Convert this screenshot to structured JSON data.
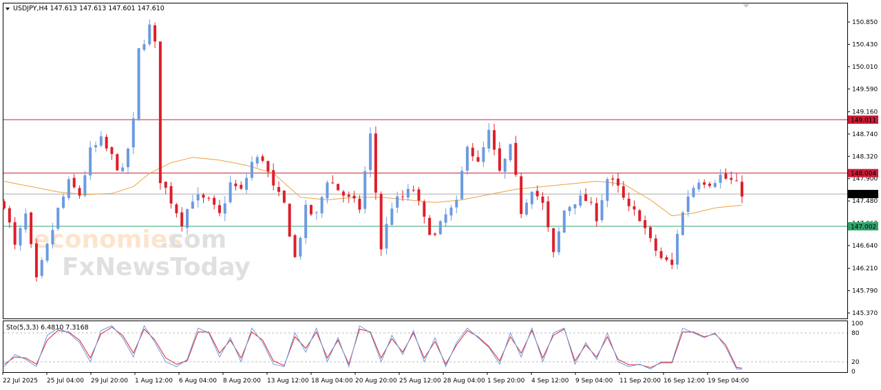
{
  "header": {
    "symbol_line": "USDJPY,H4  147.613 147.613 147.601 147.610",
    "indicator_line": "Sto(5,3,3) 6.4810 7.3168"
  },
  "watermark": {
    "part1": "economies",
    "part2": ".com",
    "line2": "FxNewsToday"
  },
  "colors": {
    "bull": "#6b9be0",
    "bear": "#dd1f2a",
    "ma": "#e9a33c",
    "resistance": "#c91d36",
    "support": "#2ea56b",
    "current": "#aaaaaa",
    "stoch_main": "#6b9be0",
    "stoch_signal": "#dd1f2a",
    "label_red": "#c91d36",
    "label_green": "#2ea56b",
    "label_black": "#000000"
  },
  "chart_data": {
    "type": "candlestick",
    "symbol": "USDJPY",
    "timeframe": "H4",
    "y_ticks": [
      "150.850",
      "150.430",
      "150.010",
      "149.590",
      "149.160",
      "148.740",
      "148.320",
      "147.900",
      "147.480",
      "147.060",
      "146.640",
      "146.210",
      "145.790",
      "145.370"
    ],
    "ylim": [
      145.37,
      150.85
    ],
    "x_labels": [
      "22 Jul 2025",
      "25 Jul 04:00",
      "29 Jul 20:00",
      "1 Aug 12:00",
      "6 Aug 04:00",
      "8 Aug 20:00",
      "13 Aug 12:00",
      "18 Aug 04:00",
      "20 Aug 20:00",
      "25 Aug 12:00",
      "28 Aug 04:00",
      "1 Sep 20:00",
      "4 Sep 12:00",
      "9 Sep 04:00",
      "11 Sep 20:00",
      "16 Sep 12:00",
      "19 Sep 04:00"
    ],
    "horizontal_levels": [
      {
        "label": "149.011",
        "value": 149.011,
        "kind": "resistance"
      },
      {
        "label": "148.004",
        "value": 148.004,
        "kind": "resistance"
      },
      {
        "label": "147.610",
        "value": 147.61,
        "kind": "current"
      },
      {
        "label": "147.002",
        "value": 147.002,
        "kind": "support"
      }
    ],
    "close_path": [
      [
        0,
        147.45
      ],
      [
        2,
        146.6
      ],
      [
        4,
        147.2
      ],
      [
        6,
        145.95
      ],
      [
        8,
        146.6
      ],
      [
        10,
        147.3
      ],
      [
        12,
        147.8
      ],
      [
        14,
        147.6
      ],
      [
        16,
        148.4
      ],
      [
        18,
        148.6
      ],
      [
        20,
        148.3
      ],
      [
        22,
        148.0
      ],
      [
        24,
        148.95
      ],
      [
        25,
        150.3
      ],
      [
        27,
        150.75
      ],
      [
        28,
        150.4
      ],
      [
        29,
        147.9
      ],
      [
        31,
        147.5
      ],
      [
        33,
        147.1
      ],
      [
        35,
        147.55
      ],
      [
        38,
        147.45
      ],
      [
        40,
        147.2
      ],
      [
        42,
        147.8
      ],
      [
        44,
        147.65
      ],
      [
        46,
        148.2
      ],
      [
        48,
        148.3
      ],
      [
        50,
        147.7
      ],
      [
        52,
        147.4
      ],
      [
        54,
        146.4
      ],
      [
        56,
        147.3
      ],
      [
        58,
        147.2
      ],
      [
        60,
        147.9
      ],
      [
        62,
        147.7
      ],
      [
        64,
        147.5
      ],
      [
        66,
        147.35
      ],
      [
        68,
        148.7
      ],
      [
        70,
        146.6
      ],
      [
        72,
        147.4
      ],
      [
        74,
        147.55
      ],
      [
        76,
        147.7
      ],
      [
        78,
        147.1
      ],
      [
        80,
        146.8
      ],
      [
        82,
        147.2
      ],
      [
        84,
        147.4
      ],
      [
        86,
        148.6
      ],
      [
        88,
        148.15
      ],
      [
        90,
        148.75
      ],
      [
        92,
        148.0
      ],
      [
        94,
        148.45
      ],
      [
        96,
        147.3
      ],
      [
        98,
        147.75
      ],
      [
        100,
        147.4
      ],
      [
        102,
        146.45
      ],
      [
        104,
        147.3
      ],
      [
        106,
        147.5
      ],
      [
        108,
        147.5
      ],
      [
        110,
        147.2
      ],
      [
        112,
        147.9
      ],
      [
        114,
        147.7
      ],
      [
        116,
        147.3
      ],
      [
        118,
        147.2
      ],
      [
        120,
        146.7
      ],
      [
        122,
        146.4
      ],
      [
        124,
        146.25
      ],
      [
        125,
        146.9
      ],
      [
        127,
        147.6
      ],
      [
        129,
        147.9
      ],
      [
        131,
        147.85
      ],
      [
        133,
        147.95
      ],
      [
        135,
        147.85
      ],
      [
        137,
        147.65
      ]
    ],
    "ma_path": [
      [
        0,
        147.85
      ],
      [
        5,
        147.75
      ],
      [
        10,
        147.65
      ],
      [
        15,
        147.6
      ],
      [
        20,
        147.62
      ],
      [
        24,
        147.75
      ],
      [
        27,
        148.0
      ],
      [
        31,
        148.2
      ],
      [
        35,
        148.3
      ],
      [
        40,
        148.25
      ],
      [
        45,
        148.15
      ],
      [
        50,
        148.0
      ],
      [
        55,
        147.55
      ],
      [
        60,
        147.5
      ],
      [
        65,
        147.55
      ],
      [
        70,
        147.55
      ],
      [
        75,
        147.5
      ],
      [
        80,
        147.45
      ],
      [
        85,
        147.5
      ],
      [
        90,
        147.6
      ],
      [
        95,
        147.7
      ],
      [
        100,
        147.75
      ],
      [
        105,
        147.8
      ],
      [
        110,
        147.85
      ],
      [
        115,
        147.8
      ],
      [
        120,
        147.5
      ],
      [
        124,
        147.2
      ],
      [
        128,
        147.25
      ],
      [
        132,
        147.35
      ],
      [
        137,
        147.4
      ]
    ],
    "candle_count": 138,
    "stochastic": {
      "name": "Sto(5,3,3)",
      "main_value": 6.481,
      "signal_value": 7.3168,
      "levels": [
        20,
        80
      ],
      "y_ticks": [
        "100",
        "80",
        "20",
        "0"
      ],
      "main_path": [
        [
          0,
          10
        ],
        [
          2,
          35
        ],
        [
          4,
          25
        ],
        [
          6,
          10
        ],
        [
          8,
          75
        ],
        [
          10,
          90
        ],
        [
          12,
          80
        ],
        [
          14,
          60
        ],
        [
          16,
          20
        ],
        [
          18,
          85
        ],
        [
          20,
          95
        ],
        [
          22,
          70
        ],
        [
          24,
          30
        ],
        [
          26,
          95
        ],
        [
          28,
          60
        ],
        [
          30,
          20
        ],
        [
          32,
          10
        ],
        [
          34,
          25
        ],
        [
          36,
          90
        ],
        [
          38,
          80
        ],
        [
          40,
          30
        ],
        [
          42,
          70
        ],
        [
          44,
          20
        ],
        [
          46,
          90
        ],
        [
          48,
          60
        ],
        [
          50,
          15
        ],
        [
          52,
          10
        ],
        [
          54,
          80
        ],
        [
          56,
          40
        ],
        [
          58,
          90
        ],
        [
          60,
          20
        ],
        [
          62,
          70
        ],
        [
          64,
          10
        ],
        [
          66,
          95
        ],
        [
          68,
          80
        ],
        [
          70,
          20
        ],
        [
          72,
          75
        ],
        [
          74,
          35
        ],
        [
          76,
          85
        ],
        [
          78,
          20
        ],
        [
          80,
          70
        ],
        [
          82,
          10
        ],
        [
          84,
          60
        ],
        [
          86,
          90
        ],
        [
          88,
          70
        ],
        [
          90,
          50
        ],
        [
          92,
          15
        ],
        [
          94,
          80
        ],
        [
          96,
          30
        ],
        [
          98,
          90
        ],
        [
          100,
          20
        ],
        [
          102,
          80
        ],
        [
          104,
          90
        ],
        [
          106,
          15
        ],
        [
          108,
          60
        ],
        [
          110,
          25
        ],
        [
          112,
          80
        ],
        [
          114,
          20
        ],
        [
          116,
          10
        ],
        [
          118,
          15
        ],
        [
          120,
          5
        ],
        [
          122,
          20
        ],
        [
          124,
          20
        ],
        [
          126,
          90
        ],
        [
          128,
          80
        ],
        [
          130,
          70
        ],
        [
          132,
          80
        ],
        [
          134,
          50
        ],
        [
          136,
          5
        ],
        [
          137,
          5
        ]
      ],
      "signal_path": [
        [
          0,
          15
        ],
        [
          2,
          30
        ],
        [
          4,
          28
        ],
        [
          6,
          15
        ],
        [
          8,
          65
        ],
        [
          10,
          85
        ],
        [
          12,
          82
        ],
        [
          14,
          65
        ],
        [
          16,
          28
        ],
        [
          18,
          78
        ],
        [
          20,
          92
        ],
        [
          22,
          75
        ],
        [
          24,
          38
        ],
        [
          26,
          88
        ],
        [
          28,
          65
        ],
        [
          30,
          28
        ],
        [
          32,
          15
        ],
        [
          34,
          22
        ],
        [
          36,
          82
        ],
        [
          38,
          82
        ],
        [
          40,
          38
        ],
        [
          42,
          65
        ],
        [
          44,
          28
        ],
        [
          46,
          82
        ],
        [
          48,
          65
        ],
        [
          50,
          22
        ],
        [
          52,
          12
        ],
        [
          54,
          72
        ],
        [
          56,
          48
        ],
        [
          58,
          82
        ],
        [
          60,
          28
        ],
        [
          62,
          65
        ],
        [
          64,
          15
        ],
        [
          66,
          88
        ],
        [
          68,
          82
        ],
        [
          70,
          28
        ],
        [
          72,
          68
        ],
        [
          74,
          40
        ],
        [
          76,
          80
        ],
        [
          78,
          28
        ],
        [
          80,
          62
        ],
        [
          82,
          15
        ],
        [
          84,
          55
        ],
        [
          86,
          85
        ],
        [
          88,
          72
        ],
        [
          90,
          52
        ],
        [
          92,
          22
        ],
        [
          94,
          72
        ],
        [
          96,
          38
        ],
        [
          98,
          85
        ],
        [
          100,
          28
        ],
        [
          102,
          75
        ],
        [
          104,
          88
        ],
        [
          106,
          22
        ],
        [
          108,
          55
        ],
        [
          110,
          30
        ],
        [
          112,
          72
        ],
        [
          114,
          25
        ],
        [
          116,
          14
        ],
        [
          118,
          14
        ],
        [
          120,
          8
        ],
        [
          122,
          18
        ],
        [
          124,
          18
        ],
        [
          126,
          82
        ],
        [
          128,
          82
        ],
        [
          130,
          72
        ],
        [
          132,
          78
        ],
        [
          134,
          55
        ],
        [
          136,
          8
        ],
        [
          137,
          7
        ]
      ]
    }
  }
}
